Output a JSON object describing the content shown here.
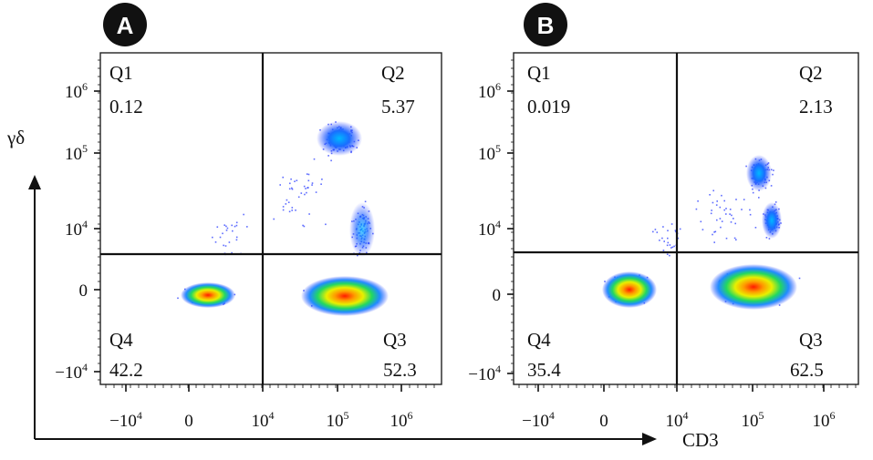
{
  "chart_data": [
    {
      "type": "scatter",
      "panel_label": "A",
      "ylabel": "γδ",
      "x_scale": "biexponential",
      "y_scale": "biexponential",
      "x_ticks": [
        "−10^4",
        "0",
        "10^4",
        "10^5",
        "10^6"
      ],
      "y_ticks": [
        "10^6",
        "10^5",
        "10^4",
        "0",
        "−10^4"
      ],
      "gate": {
        "x": 10000,
        "y": 10000
      },
      "quadrants": [
        {
          "name": "Q1",
          "value": "0.12"
        },
        {
          "name": "Q2",
          "value": "5.37"
        },
        {
          "name": "Q3",
          "value": "52.3"
        },
        {
          "name": "Q4",
          "value": "42.2"
        }
      ],
      "populations": [
        {
          "x": 0,
          "y": 0
        },
        {
          "x": 90000,
          "y": 0
        },
        {
          "x": 150000,
          "y": 200000
        },
        {
          "x": 250000,
          "y": 8000
        }
      ]
    },
    {
      "type": "scatter",
      "panel_label": "B",
      "xlabel": "CD3",
      "x_scale": "biexponential",
      "y_scale": "biexponential",
      "x_ticks": [
        "−10^4",
        "0",
        "10^4",
        "10^5",
        "10^6"
      ],
      "y_ticks": [
        "10^6",
        "10^5",
        "10^4",
        "0",
        "−10^4"
      ],
      "gate": {
        "x": 10000,
        "y": 10000
      },
      "quadrants": [
        {
          "name": "Q1",
          "value": "0.019"
        },
        {
          "name": "Q2",
          "value": "2.13"
        },
        {
          "name": "Q3",
          "value": "62.5"
        },
        {
          "name": "Q4",
          "value": "35.4"
        }
      ],
      "populations": [
        {
          "x": 0,
          "y": 0
        },
        {
          "x": 100000,
          "y": 0
        },
        {
          "x": 120000,
          "y": 40000
        },
        {
          "x": 200000,
          "y": 12000
        }
      ]
    }
  ]
}
